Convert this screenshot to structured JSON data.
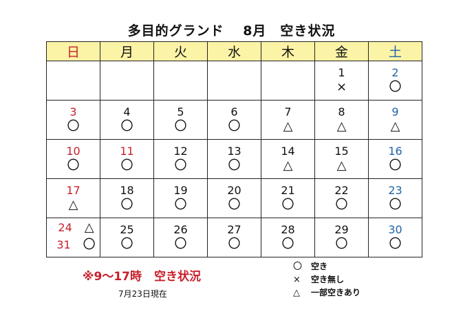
{
  "title": "多目的グランド　 8月　空き状況",
  "weekdays": [
    "日",
    "月",
    "火",
    "水",
    "木",
    "金",
    "土"
  ],
  "weeks": [
    [
      null,
      null,
      null,
      null,
      null,
      {
        "day": "1",
        "mark": "×"
      },
      {
        "day": "2",
        "mark": "〇"
      }
    ],
    [
      {
        "day": "3",
        "mark": "〇"
      },
      {
        "day": "4",
        "mark": "〇"
      },
      {
        "day": "5",
        "mark": "〇"
      },
      {
        "day": "6",
        "mark": "〇"
      },
      {
        "day": "7",
        "mark": "△"
      },
      {
        "day": "8",
        "mark": "△"
      },
      {
        "day": "9",
        "mark": "△"
      }
    ],
    [
      {
        "day": "10",
        "mark": "〇"
      },
      {
        "day": "11",
        "mark": "〇"
      },
      {
        "day": "12",
        "mark": "〇"
      },
      {
        "day": "13",
        "mark": "〇"
      },
      {
        "day": "14",
        "mark": "△"
      },
      {
        "day": "15",
        "mark": "△"
      },
      {
        "day": "16",
        "mark": "〇"
      }
    ],
    [
      {
        "day": "17",
        "mark": "△"
      },
      {
        "day": "18",
        "mark": "〇"
      },
      {
        "day": "19",
        "mark": "〇"
      },
      {
        "day": "20",
        "mark": "〇"
      },
      {
        "day": "21",
        "mark": "〇"
      },
      {
        "day": "22",
        "mark": "〇"
      },
      {
        "day": "23",
        "mark": "〇"
      }
    ],
    [
      {
        "split": [
          {
            "day": "24",
            "mark": "△"
          },
          {
            "day": "31",
            "mark": "〇"
          }
        ]
      },
      {
        "day": "25",
        "mark": "〇"
      },
      {
        "day": "26",
        "mark": "〇"
      },
      {
        "day": "27",
        "mark": "〇"
      },
      {
        "day": "28",
        "mark": "〇"
      },
      {
        "day": "29",
        "mark": "〇"
      },
      {
        "day": "30",
        "mark": "〇"
      }
    ]
  ],
  "note_prefix": "※9～17時",
  "note_label": "空き状況",
  "updated": "7月23日現在",
  "legend": [
    {
      "symbol": "〇",
      "label": "空き"
    },
    {
      "symbol": "×",
      "label": "空き無し"
    },
    {
      "symbol": "△",
      "label": "一部空きあり"
    }
  ],
  "colors": {
    "sunday": "#c8202b",
    "saturday": "#1f63a8",
    "header_bg": "#fbf3a6"
  }
}
